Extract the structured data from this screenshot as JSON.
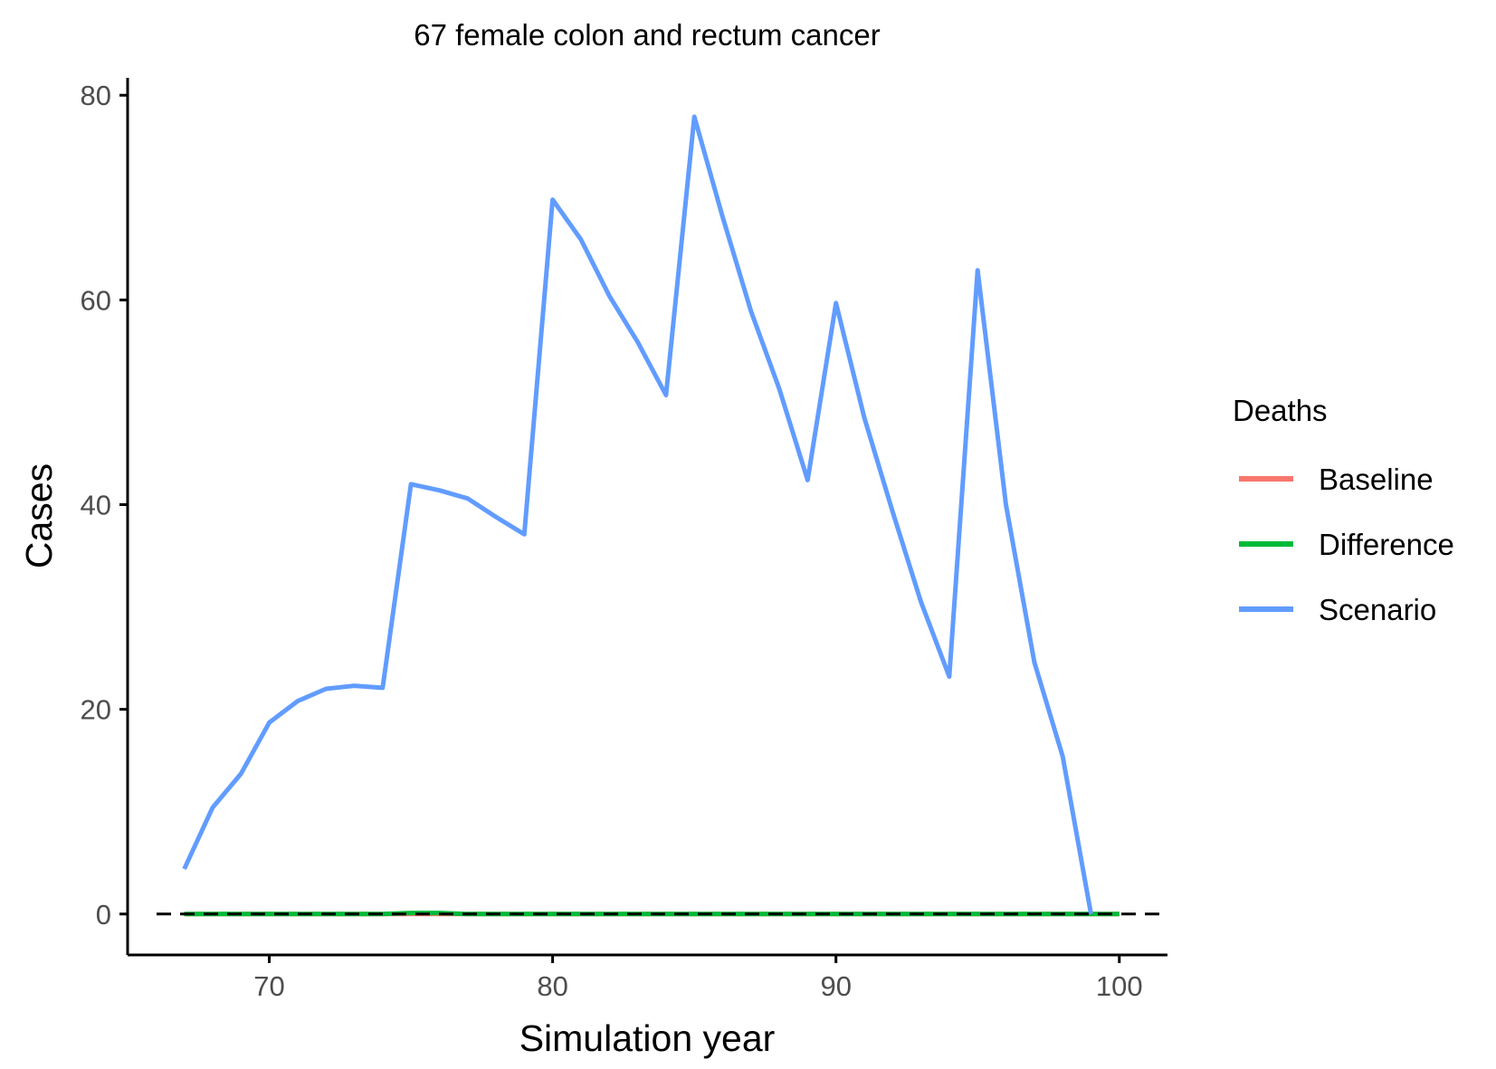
{
  "chart_data": {
    "type": "line",
    "title": "67 female colon and rectum cancer",
    "xlabel": "Simulation year",
    "ylabel": "Cases",
    "xlim": [
      65.0,
      101.7
    ],
    "ylim": [
      -4.0,
      81.7
    ],
    "x_ticks": [
      70,
      80,
      90,
      100
    ],
    "y_ticks": [
      0,
      20,
      40,
      60,
      80
    ],
    "grid": false,
    "reference_line": {
      "y": 0,
      "style": "dashed",
      "color": "#000000"
    },
    "legend": {
      "title": "Deaths",
      "position": "right",
      "entries": [
        "Baseline",
        "Difference",
        "Scenario"
      ]
    },
    "series": [
      {
        "name": "Baseline",
        "color": "#F8766D",
        "x": [
          67,
          68,
          69,
          70,
          71,
          72,
          73,
          74,
          75,
          76,
          77,
          78,
          79,
          80,
          81,
          82,
          83,
          84,
          85,
          86,
          87,
          88,
          89,
          90,
          91,
          92,
          93,
          94,
          95,
          96,
          97,
          98,
          99,
          100
        ],
        "values": [
          0,
          0,
          0,
          0,
          0,
          0,
          0,
          0,
          0,
          0,
          0,
          0,
          0,
          0,
          0,
          0,
          0,
          0,
          0,
          0,
          0,
          0,
          0,
          0,
          0,
          0,
          0,
          0,
          0,
          0,
          0,
          0,
          0,
          0
        ]
      },
      {
        "name": "Difference",
        "color": "#00BA38",
        "x": [
          67,
          68,
          69,
          70,
          71,
          72,
          73,
          74,
          75,
          76,
          77,
          78,
          79,
          80,
          81,
          82,
          83,
          84,
          85,
          86,
          87,
          88,
          89,
          90,
          91,
          92,
          93,
          94,
          95,
          96,
          97,
          98,
          99,
          100
        ],
        "values": [
          0,
          0,
          0,
          0,
          0,
          0,
          0,
          0,
          0.1,
          0.1,
          0,
          0,
          0,
          0,
          0,
          0,
          0,
          0,
          0,
          0,
          0,
          0,
          0,
          0,
          0,
          0,
          0,
          0,
          0,
          0,
          0,
          0,
          0,
          0
        ]
      },
      {
        "name": "Scenario",
        "color": "#619CFF",
        "x": [
          67,
          68,
          69,
          70,
          71,
          72,
          73,
          74,
          75,
          76,
          77,
          78,
          79,
          80,
          81,
          82,
          83,
          84,
          85,
          86,
          87,
          88,
          89,
          90,
          91,
          92,
          93,
          94,
          95,
          96,
          97,
          98,
          99
        ],
        "values": [
          4.4,
          10.4,
          13.7,
          18.7,
          20.8,
          22.0,
          22.3,
          22.1,
          42.0,
          41.4,
          40.6,
          38.8,
          37.1,
          69.8,
          65.9,
          60.4,
          55.9,
          50.7,
          77.9,
          68.1,
          58.9,
          51.3,
          42.4,
          59.7,
          48.5,
          39.3,
          30.5,
          23.2,
          62.9,
          40.0,
          24.6,
          15.4,
          0
        ]
      }
    ]
  }
}
